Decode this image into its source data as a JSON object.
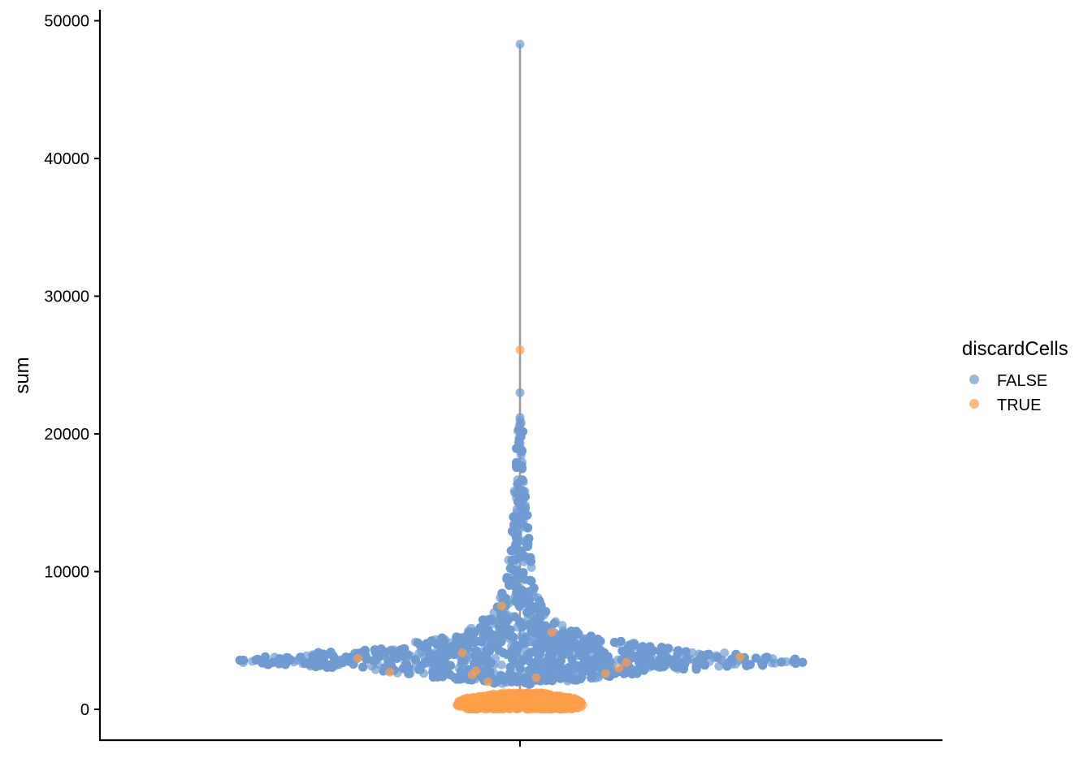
{
  "chart_data": {
    "type": "scatter",
    "subtype": "violin-beeswarm",
    "title": "",
    "xlabel": "",
    "ylabel": "sum",
    "ylim": [
      -2300,
      50800
    ],
    "yticks": [
      0,
      10000,
      20000,
      30000,
      40000,
      50000
    ],
    "ytick_labels": [
      "0",
      "10000",
      "20000",
      "30000",
      "40000",
      "50000"
    ],
    "grid": false,
    "legend": {
      "title": "discardCells",
      "placement": "right",
      "entries": [
        {
          "label": "FALSE",
          "color": "#6f9bd1"
        },
        {
          "label": "TRUE",
          "color": "#ff9e4a"
        }
      ]
    },
    "whisker": {
      "min": 0,
      "max": 48300,
      "color": "#999999"
    },
    "series": [
      {
        "name": "FALSE",
        "color": "#6f9bd1",
        "density_profile": {
          "y": [
            1800,
            2400,
            3000,
            3400,
            3800,
            4300,
            5000,
            5800,
            7000,
            9000,
            12000,
            15000,
            18000,
            21000
          ],
          "half_width": [
            0.04,
            0.22,
            0.45,
            0.7,
            0.62,
            0.4,
            0.22,
            0.12,
            0.065,
            0.035,
            0.022,
            0.015,
            0.01,
            0.006
          ]
        },
        "outliers": [
          23000,
          21200,
          21000,
          20700,
          20200,
          19800,
          19300,
          48300
        ]
      },
      {
        "name": "TRUE",
        "color": "#ff9e4a",
        "density_profile": {
          "y": [
            0,
            200,
            500,
            800,
            1200
          ],
          "half_width": [
            0.12,
            0.15,
            0.15,
            0.13,
            0.05
          ]
        },
        "highlighted": [
          26100,
          7500,
          5600,
          4100,
          3800,
          3700,
          3400,
          2700,
          2600,
          2500,
          2300,
          2000,
          3000,
          2800
        ]
      }
    ]
  }
}
